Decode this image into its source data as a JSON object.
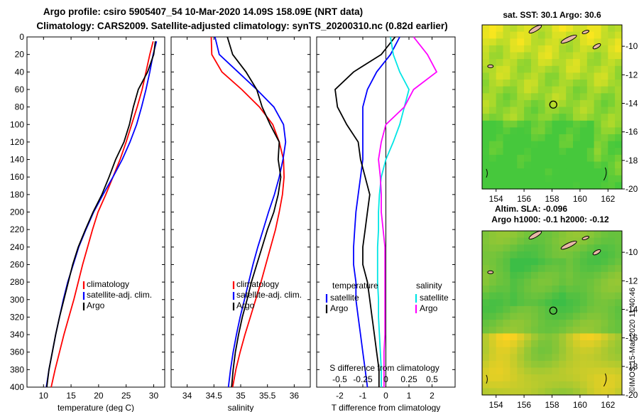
{
  "header": {
    "line1": "Argo profile: csiro 5905407_54 10-Mar-2020 14.09S 158.09E (NRT data)",
    "line2": "Climatology: CARS2009. Satellite-adjusted climatology: synTS_20200310.nc (0.82d earlier)"
  },
  "credit": "©IMOS 15-Mar-2020 11:40:46",
  "colors": {
    "clim": "#ff0000",
    "sat": "#0000ff",
    "argo": "#000000",
    "sal_sat": "#00e5e5",
    "sal_argo": "#ff00ff"
  },
  "chart_data": [
    {
      "type": "line",
      "title": "temperature",
      "xlabel": "temperature (deg C)",
      "ylabel": "depth",
      "xlim": [
        7,
        32
      ],
      "ylim": [
        400,
        0
      ],
      "xticks": [
        10,
        15,
        20,
        25,
        30
      ],
      "yticks": [
        0,
        20,
        40,
        60,
        80,
        100,
        120,
        140,
        160,
        180,
        200,
        220,
        240,
        260,
        280,
        300,
        320,
        340,
        360,
        380,
        400
      ],
      "legend": [
        "climatology",
        "satellite-adj. clim.",
        "Argo"
      ],
      "series": [
        {
          "name": "climatology",
          "depth": [
            5,
            20,
            40,
            60,
            80,
            100,
            120,
            140,
            160,
            180,
            200,
            220,
            240,
            260,
            280,
            300,
            320,
            340,
            360,
            380,
            400
          ],
          "values": [
            29.9,
            29.3,
            28.6,
            27.9,
            27.0,
            26.0,
            25.0,
            23.9,
            22.6,
            21.3,
            19.9,
            18.9,
            18.0,
            17.1,
            16.3,
            15.5,
            14.6,
            13.7,
            12.9,
            12.1,
            11.4
          ]
        },
        {
          "name": "satellite-adj. clim.",
          "depth": [
            5,
            20,
            40,
            60,
            80,
            100,
            120,
            140,
            160,
            180,
            200,
            220,
            240,
            260,
            280,
            300,
            320,
            340,
            360,
            380,
            400
          ],
          "values": [
            30.5,
            29.9,
            29.3,
            28.6,
            27.8,
            26.9,
            25.7,
            24.3,
            22.6,
            20.8,
            19.1,
            17.7,
            16.4,
            15.4,
            14.4,
            13.6,
            12.9,
            12.2,
            11.6,
            11.0,
            10.5
          ]
        },
        {
          "name": "Argo",
          "depth": [
            5,
            20,
            40,
            60,
            80,
            100,
            120,
            140,
            160,
            180,
            200,
            220,
            240,
            260,
            280,
            300,
            320,
            340,
            360,
            380,
            400
          ],
          "values": [
            30.3,
            30.0,
            28.9,
            27.2,
            26.3,
            25.6,
            24.6,
            23.1,
            21.9,
            20.6,
            19.0,
            17.6,
            16.3,
            15.3,
            14.5,
            13.7,
            12.9,
            12.2,
            11.6,
            11.0,
            10.6
          ]
        }
      ]
    },
    {
      "type": "line",
      "title": "salinity",
      "xlabel": "salinity",
      "ylabel": "depth",
      "xlim": [
        33.7,
        36.3
      ],
      "ylim": [
        400,
        0
      ],
      "xticks": [
        34,
        34.5,
        35,
        35.5,
        36
      ],
      "yticks": [
        0,
        20,
        40,
        60,
        80,
        100,
        120,
        140,
        160,
        180,
        200,
        220,
        240,
        260,
        280,
        300,
        320,
        340,
        360,
        380,
        400
      ],
      "legend": [
        "climatology",
        "satellite-adj. clim.",
        "Argo"
      ],
      "series": [
        {
          "name": "climatology",
          "depth": [
            0,
            20,
            40,
            60,
            80,
            100,
            120,
            140,
            160,
            180,
            200,
            220,
            240,
            260,
            280,
            300,
            320,
            340,
            360,
            380,
            400
          ],
          "values": [
            34.45,
            34.46,
            34.65,
            35.02,
            35.35,
            35.6,
            35.72,
            35.8,
            35.81,
            35.78,
            35.72,
            35.65,
            35.56,
            35.47,
            35.38,
            35.28,
            35.18,
            35.08,
            34.99,
            34.91,
            34.85
          ]
        },
        {
          "name": "satellite-adj. clim.",
          "depth": [
            0,
            20,
            40,
            60,
            80,
            100,
            120,
            140,
            160,
            180,
            200,
            220,
            240,
            260,
            280,
            300,
            320,
            340,
            360,
            380,
            400
          ],
          "values": [
            34.52,
            34.6,
            34.95,
            35.3,
            35.62,
            35.8,
            35.84,
            35.79,
            35.72,
            35.63,
            35.52,
            35.42,
            35.32,
            35.23,
            35.15,
            35.07,
            34.99,
            34.92,
            34.86,
            34.81,
            34.77
          ]
        },
        {
          "name": "Argo",
          "depth": [
            0,
            20,
            40,
            60,
            80,
            100,
            120,
            140,
            160,
            180,
            200,
            220,
            240,
            260,
            280,
            300,
            320,
            340,
            360,
            380,
            400
          ],
          "values": [
            34.75,
            34.85,
            35.1,
            35.3,
            35.4,
            35.55,
            35.72,
            35.7,
            35.75,
            35.7,
            35.62,
            35.5,
            35.4,
            35.3,
            35.2,
            35.12,
            35.03,
            34.96,
            34.9,
            34.86,
            34.83
          ]
        }
      ]
    },
    {
      "type": "line",
      "title": "difference from climatology",
      "xlabel": "T difference from climatology",
      "top_axis_label": "S difference from climatology",
      "xlim": [
        -3,
        3
      ],
      "ylim": [
        400,
        0
      ],
      "xticks": [
        -2,
        -1,
        0,
        1,
        2
      ],
      "top_ticks": [
        -0.5,
        -0.25,
        0,
        0.25,
        0.5
      ],
      "yticks": [
        0,
        20,
        40,
        60,
        80,
        100,
        120,
        140,
        160,
        180,
        200,
        220,
        240,
        260,
        280,
        300,
        320,
        340,
        360,
        380,
        400
      ],
      "legend": [
        "temperature",
        "satellite",
        "Argo",
        "salinity",
        "satellite",
        "Argo"
      ],
      "series": [
        {
          "name": "temperature satellite",
          "depth": [
            0,
            20,
            40,
            60,
            80,
            100,
            120,
            140,
            160,
            180,
            200,
            220,
            240,
            260,
            280,
            300,
            320,
            340,
            360,
            380,
            400
          ],
          "values": [
            0.6,
            0.2,
            -0.4,
            -0.8,
            -1.0,
            -1.0,
            -1.0,
            -1.0,
            -1.1,
            -1.2,
            -1.3,
            -1.35,
            -1.4,
            -1.4,
            -1.3,
            -1.3,
            -1.2,
            -1.1,
            -1.0,
            -0.9,
            -0.8
          ]
        },
        {
          "name": "temperature Argo",
          "depth": [
            0,
            20,
            40,
            60,
            80,
            100,
            120,
            140,
            160,
            180,
            200,
            220,
            240,
            260,
            280,
            300,
            320,
            340,
            360,
            380,
            400
          ],
          "values": [
            0.4,
            -0.2,
            -1.4,
            -2.2,
            -2.1,
            -1.7,
            -1.2,
            -1.1,
            -0.9,
            -0.7,
            -0.8,
            -0.9,
            -1.0,
            -1.0,
            -0.8,
            -0.7,
            -0.6,
            -0.5,
            -0.4,
            -0.3,
            -0.3
          ]
        },
        {
          "name": "salinity satellite",
          "depth": [
            0,
            20,
            40,
            60,
            80,
            100,
            120,
            140,
            160,
            180,
            200,
            220,
            240,
            260,
            280,
            300,
            320,
            340,
            360,
            380,
            400
          ],
          "values": [
            0.05,
            0.08,
            0.15,
            0.25,
            0.2,
            0.15,
            0.08,
            0.0,
            -0.05,
            -0.07,
            -0.08,
            -0.08,
            -0.09,
            -0.09,
            -0.09,
            -0.08,
            -0.08,
            -0.07,
            -0.06,
            -0.05,
            -0.05
          ]
        },
        {
          "name": "salinity Argo",
          "depth": [
            0,
            20,
            40,
            60,
            80,
            100,
            120,
            140,
            160,
            180,
            200,
            220,
            240,
            260,
            280,
            300,
            320,
            340,
            360,
            380,
            400
          ],
          "values": [
            0.3,
            0.45,
            0.55,
            0.3,
            0.2,
            0.0,
            -0.05,
            -0.08,
            -0.06,
            -0.05,
            -0.05,
            -0.03,
            -0.01,
            -0.01,
            -0.01,
            -0.01,
            -0.01,
            -0.01,
            -0.02,
            -0.02,
            -0.02
          ]
        }
      ]
    },
    {
      "type": "heatmap",
      "title": "sat. SST: 30.1 Argo: 30.6",
      "lonlim": [
        153,
        163
      ],
      "latlim": [
        -20,
        -8.5
      ],
      "xticks": [
        154,
        156,
        158,
        160,
        162
      ],
      "yticks": [
        -10,
        -12,
        -14,
        -16,
        -18,
        -20
      ],
      "marker": {
        "lon": 158.09,
        "lat": -14.09
      }
    },
    {
      "type": "heatmap",
      "title": "Altim. SLA: -0.096",
      "subtitle": "Argo h1000: -0.1 h2000: -0.12",
      "lonlim": [
        153,
        163
      ],
      "latlim": [
        -20,
        -8.5
      ],
      "xticks": [
        154,
        156,
        158,
        160,
        162
      ],
      "yticks": [
        -10,
        -12,
        -14,
        -16,
        -18,
        -20
      ],
      "marker": {
        "lon": 158.09,
        "lat": -14.09
      }
    }
  ]
}
